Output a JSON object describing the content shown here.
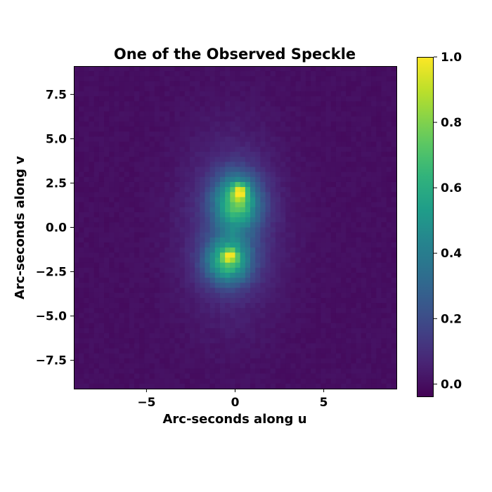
{
  "chart_data": {
    "type": "heatmap",
    "title": "One of the Observed Speckle",
    "xlabel": "Arc-seconds along u",
    "ylabel": "Arc-seconds along v",
    "xlim": [
      -9.1,
      9.1
    ],
    "ylim": [
      -9.1,
      9.1
    ],
    "x_ticks": [
      -5,
      0,
      5
    ],
    "x_tick_labels": [
      "−5",
      "0",
      "5"
    ],
    "y_ticks": [
      7.5,
      5.0,
      2.5,
      0.0,
      -2.5,
      -5.0,
      -7.5
    ],
    "y_tick_labels": [
      "7.5",
      "5.0",
      "2.5",
      "0.0",
      "−2.5",
      "−5.0",
      "−7.5"
    ],
    "colormap": "viridis",
    "colorbar": {
      "range": [
        -0.04,
        1.0
      ],
      "ticks": [
        0.0,
        0.2,
        0.4,
        0.6,
        0.8,
        1.0
      ],
      "tick_labels": [
        "0.0",
        "0.2",
        "0.4",
        "0.6",
        "0.8",
        "1.0"
      ]
    },
    "grid_size": 64,
    "background_level": 0.0,
    "components": [
      {
        "name": "upper blob",
        "center_u": 0.1,
        "center_v": 1.4,
        "sigma_u": 0.9,
        "sigma_v": 1.1,
        "amplitude": 0.62
      },
      {
        "name": "lower blob",
        "center_u": -0.4,
        "center_v": -1.9,
        "sigma_u": 0.9,
        "sigma_v": 0.9,
        "amplitude": 0.58
      },
      {
        "name": "diffuse halo",
        "center_u": -0.2,
        "center_v": 0.0,
        "sigma_u": 1.9,
        "sigma_v": 3.4,
        "amplitude": 0.15
      },
      {
        "name": "upper peak",
        "center_u": 0.25,
        "center_v": 2.0,
        "sigma_u": 0.28,
        "sigma_v": 0.32,
        "amplitude": 0.42
      },
      {
        "name": "lower peak",
        "center_u": -0.3,
        "center_v": -1.6,
        "sigma_u": 0.28,
        "sigma_v": 0.25,
        "amplitude": 0.33
      }
    ]
  }
}
